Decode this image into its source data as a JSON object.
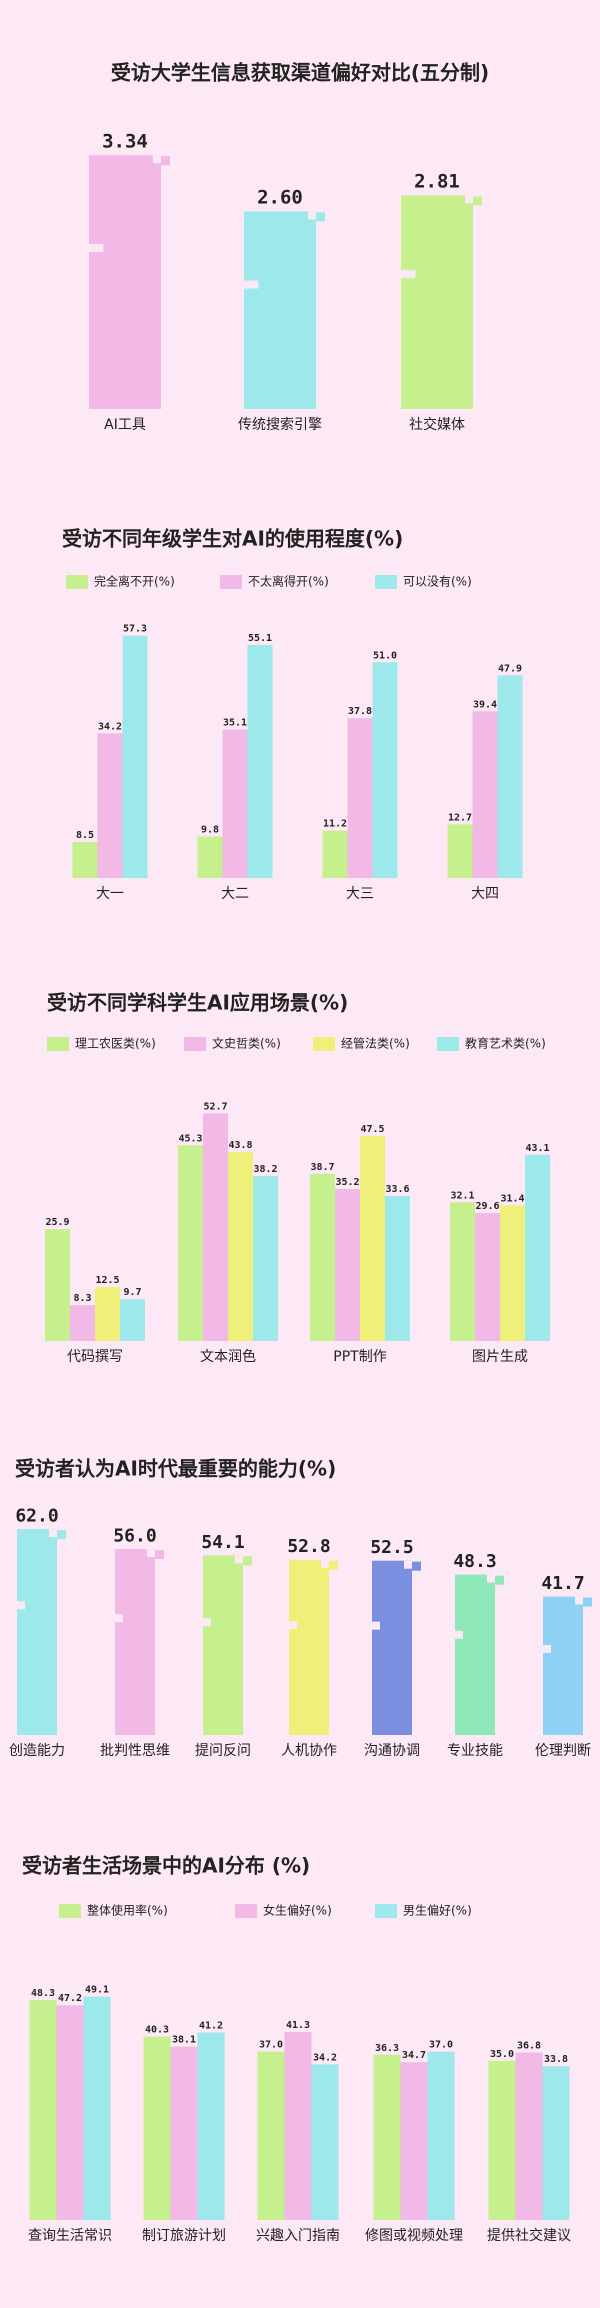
{
  "chart_data": [
    {
      "type": "bar",
      "title": "受访大学生信息获取渠道偏好对比(五分制)",
      "categories": [
        "AI工具",
        "传统搜索引擎",
        "社交媒体"
      ],
      "values": [
        3.34,
        2.6,
        2.81
      ],
      "value_labels": [
        "3.34",
        "2.60",
        "2.81"
      ],
      "colors": [
        "#f2b8e6",
        "#9de8ea",
        "#c6ef8e"
      ]
    },
    {
      "type": "grouped-bar",
      "title": "受访不同年级学生对AI的使用程度(%)",
      "categories": [
        "大一",
        "大二",
        "大三",
        "大四"
      ],
      "series": [
        {
          "name": "完全离不开(%)",
          "color": "#c6ef8e",
          "values": [
            8.5,
            9.8,
            11.2,
            12.7
          ],
          "value_labels": [
            "8.5",
            "9.8",
            "11.2",
            "12.7"
          ]
        },
        {
          "name": "不太离得开(%)",
          "color": "#f2b8e6",
          "values": [
            34.2,
            35.1,
            37.8,
            39.4
          ],
          "value_labels": [
            "34.2",
            "35.1",
            "37.8",
            "39.4"
          ]
        },
        {
          "name": "可以没有(%)",
          "color": "#9de8ea",
          "values": [
            57.3,
            55.1,
            51.0,
            47.9
          ],
          "value_labels": [
            "57.3",
            "55.1",
            "51.0",
            "47.9"
          ]
        }
      ]
    },
    {
      "type": "grouped-bar",
      "title": "受访不同学科学生AI应用场景(%)",
      "categories": [
        "代码撰写",
        "文本润色",
        "PPT制作",
        "图片生成"
      ],
      "series": [
        {
          "name": "理工农医类(%)",
          "color": "#c6ef8e",
          "values": [
            25.9,
            45.3,
            38.7,
            32.1
          ],
          "value_labels": [
            "25.9",
            "45.3",
            "38.7",
            "32.1"
          ]
        },
        {
          "name": "文史哲类(%)",
          "color": "#f2b8e6",
          "values": [
            8.3,
            52.7,
            35.2,
            29.6
          ],
          "value_labels": [
            "8.3",
            "52.7",
            "35.2",
            "29.6"
          ]
        },
        {
          "name": "经管法类(%)",
          "color": "#eef07a",
          "values": [
            12.5,
            43.8,
            47.5,
            31.4
          ],
          "value_labels": [
            "12.5",
            "43.8",
            "47.5",
            "31.4"
          ]
        },
        {
          "name": "教育艺术类(%)",
          "color": "#9de8ea",
          "values": [
            9.7,
            38.2,
            33.6,
            43.1
          ],
          "value_labels": [
            "9.7",
            "38.2",
            "33.6",
            "43.1"
          ]
        }
      ]
    },
    {
      "type": "bar",
      "title": "受访者认为AI时代最重要的能力(%)",
      "categories": [
        "创造能力",
        "批判性思维",
        "提问反问",
        "人机协作",
        "沟通协调",
        "专业技能",
        "伦理判断"
      ],
      "values": [
        62.0,
        56.0,
        54.1,
        52.8,
        52.5,
        48.3,
        41.7
      ],
      "value_labels": [
        "62.0",
        "56.0",
        "54.1",
        "52.8",
        "52.5",
        "48.3",
        "41.7"
      ],
      "colors": [
        "#9de8ea",
        "#f2b8e6",
        "#c6ef8e",
        "#eef07a",
        "#7b8fe0",
        "#8fe8b8",
        "#8fd0f5"
      ]
    },
    {
      "type": "grouped-bar",
      "title": "受访者生活场景中的AI分布 (%)",
      "categories": [
        "查询生活常识",
        "制订旅游计划",
        "兴趣入门指南",
        "修图或视频处理",
        "提供社交建议"
      ],
      "series": [
        {
          "name": "整体使用率(%)",
          "color": "#c6ef8e",
          "values": [
            48.3,
            40.3,
            37.0,
            36.3,
            35.0
          ],
          "value_labels": [
            "48.3",
            "40.3",
            "37.0",
            "36.3",
            "35.0"
          ]
        },
        {
          "name": "女生偏好(%)",
          "color": "#f2b8e6",
          "values": [
            47.2,
            38.1,
            41.3,
            34.7,
            36.8
          ],
          "value_labels": [
            "47.2",
            "38.1",
            "41.3",
            "34.7",
            "36.8"
          ]
        },
        {
          "name": "男生偏好(%)",
          "color": "#9de8ea",
          "values": [
            49.1,
            41.2,
            34.2,
            37.0,
            33.8
          ],
          "value_labels": [
            "49.1",
            "41.2",
            "34.2",
            "37.0",
            "33.8"
          ]
        }
      ]
    }
  ]
}
